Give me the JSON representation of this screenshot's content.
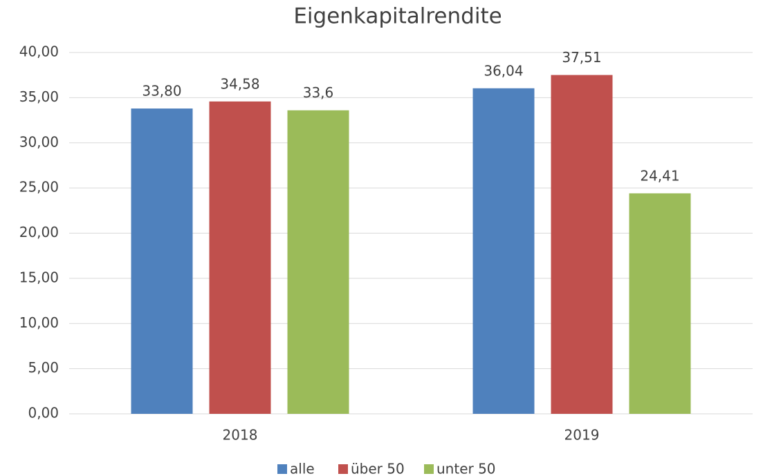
{
  "chart_data": {
    "type": "bar",
    "title": "Eigenkapitalrendite",
    "categories": [
      "2018",
      "2019"
    ],
    "series": [
      {
        "name": "alle",
        "color": "#4f81bd",
        "values": [
          33.8,
          36.04
        ],
        "value_labels": [
          "33,80",
          "36,04"
        ]
      },
      {
        "name": "über 50",
        "color": "#c0504d",
        "values": [
          34.58,
          37.51
        ],
        "value_labels": [
          "34,58",
          "37,51"
        ]
      },
      {
        "name": "unter 50",
        "color": "#9bbb59",
        "values": [
          33.6,
          24.41
        ],
        "value_labels": [
          "33,6",
          "24,41"
        ]
      }
    ],
    "ylim": [
      0,
      40
    ],
    "yticks": [
      {
        "value": 0,
        "label": "0,00"
      },
      {
        "value": 5,
        "label": "5,00"
      },
      {
        "value": 10,
        "label": "10,00"
      },
      {
        "value": 15,
        "label": "15,00"
      },
      {
        "value": 20,
        "label": "20,00"
      },
      {
        "value": 25,
        "label": "25,00"
      },
      {
        "value": 30,
        "label": "30,00"
      },
      {
        "value": 35,
        "label": "35,00"
      },
      {
        "value": 40,
        "label": "40,00"
      }
    ],
    "grid": true,
    "legend": "bottom"
  }
}
